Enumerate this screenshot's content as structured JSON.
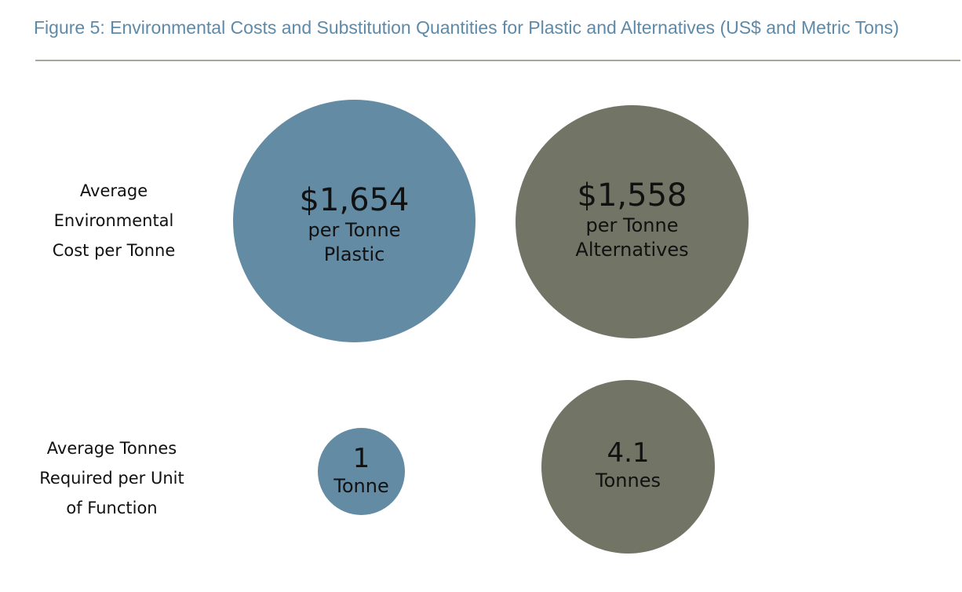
{
  "title": "Figure 5: Environmental Costs and Substitution Quantities for Plastic and Alternatives (US$ and Metric Tons)",
  "colors": {
    "title": "#5d8aa8",
    "plastic": "#638ba3",
    "alternatives": "#727465",
    "rule": "#a8a89a"
  },
  "rows": [
    {
      "label": "Average\nEnvironmental\nCost per Tonne"
    },
    {
      "label": "Average Tonnes\nRequired per Unit\nof Function"
    }
  ],
  "chart_data": {
    "type": "bubble",
    "title": "Figure 5: Environmental Costs and Substitution Quantities for Plastic and Alternatives (US$ and Metric Tons)",
    "columns": [
      "Plastic",
      "Alternatives"
    ],
    "rows": [
      "Average Environmental Cost per Tonne",
      "Average Tonnes Required per Unit of Function"
    ],
    "bubbles": [
      {
        "row": 0,
        "series": "Plastic",
        "value": 1654,
        "value_text": "$1,654",
        "line1": "per Tonne",
        "line2": "Plastic"
      },
      {
        "row": 0,
        "series": "Alternatives",
        "value": 1558,
        "value_text": "$1,558",
        "line1": "per Tonne",
        "line2": "Alternatives"
      },
      {
        "row": 1,
        "series": "Plastic",
        "value": 1,
        "value_text": "1",
        "line1": "Tonne",
        "line2": ""
      },
      {
        "row": 1,
        "series": "Alternatives",
        "value": 4.1,
        "value_text": "4.1",
        "line1": "Tonnes",
        "line2": ""
      }
    ]
  }
}
